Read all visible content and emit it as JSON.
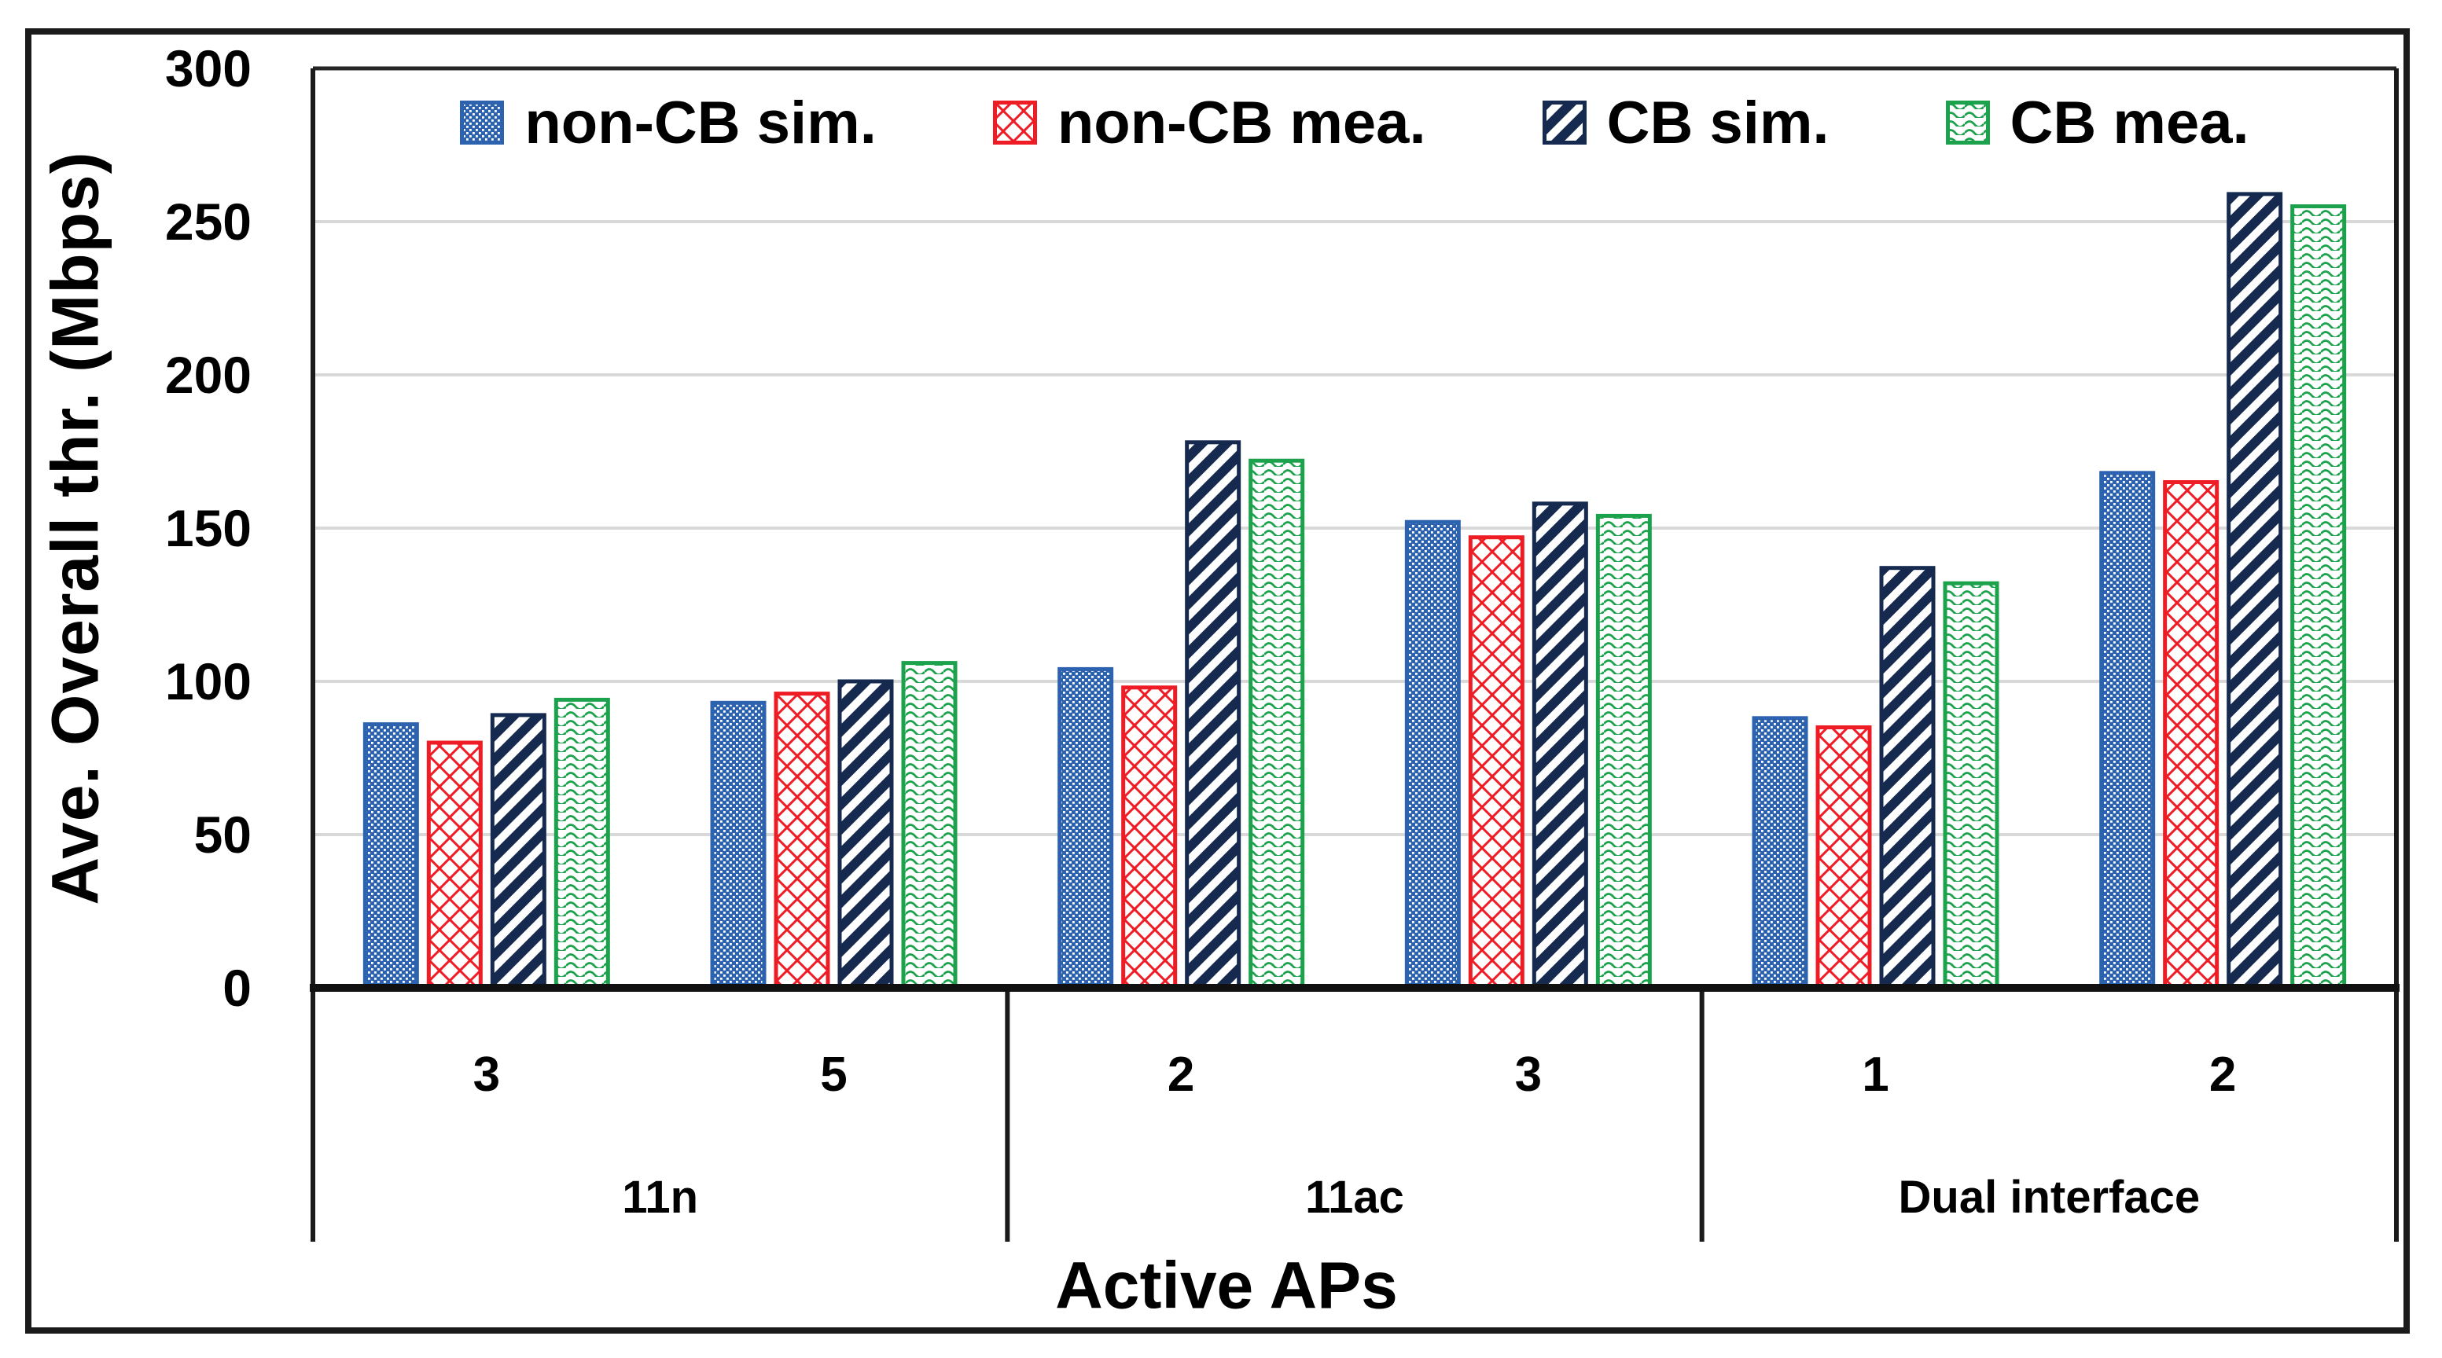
{
  "chart_data": {
    "type": "bar",
    "title": "",
    "ylabel": "Ave. Overall thr. (Mbps)",
    "xlabel": "Active APs",
    "ylim": [
      0,
      300
    ],
    "yticks": [
      0,
      50,
      100,
      150,
      200,
      250,
      300
    ],
    "grid": "horizontal-light-gray",
    "legend_position": "top-inside-single-row",
    "group_labels": [
      "3",
      "5",
      "2",
      "3",
      "1",
      "2"
    ],
    "sections": [
      {
        "label": "11n",
        "num_groups": 2
      },
      {
        "label": "11ac",
        "num_groups": 2
      },
      {
        "label": "Dual interface",
        "num_groups": 2
      }
    ],
    "series": [
      {
        "name": "non-CB sim.",
        "color": "#2d62ae",
        "pattern": "blue-weave-dots",
        "values": [
          86,
          93,
          104,
          152,
          88,
          168
        ]
      },
      {
        "name": "non-CB mea.",
        "color": "#ee1c25",
        "pattern": "red-diamond-lattice",
        "values": [
          80,
          96,
          98,
          147,
          85,
          165
        ]
      },
      {
        "name": "CB sim.",
        "color": "#16294e",
        "pattern": "navy-diagonal-stripes",
        "values": [
          89,
          100,
          178,
          158,
          137,
          259
        ]
      },
      {
        "name": "CB mea.",
        "color": "#1ca24c",
        "pattern": "green-waves",
        "values": [
          94,
          106,
          172,
          154,
          132,
          255
        ]
      }
    ],
    "colors": {
      "grid": "#d9d9d9",
      "axis": "#1a1a1a",
      "text": "#000000",
      "background": "#ffffff"
    }
  }
}
